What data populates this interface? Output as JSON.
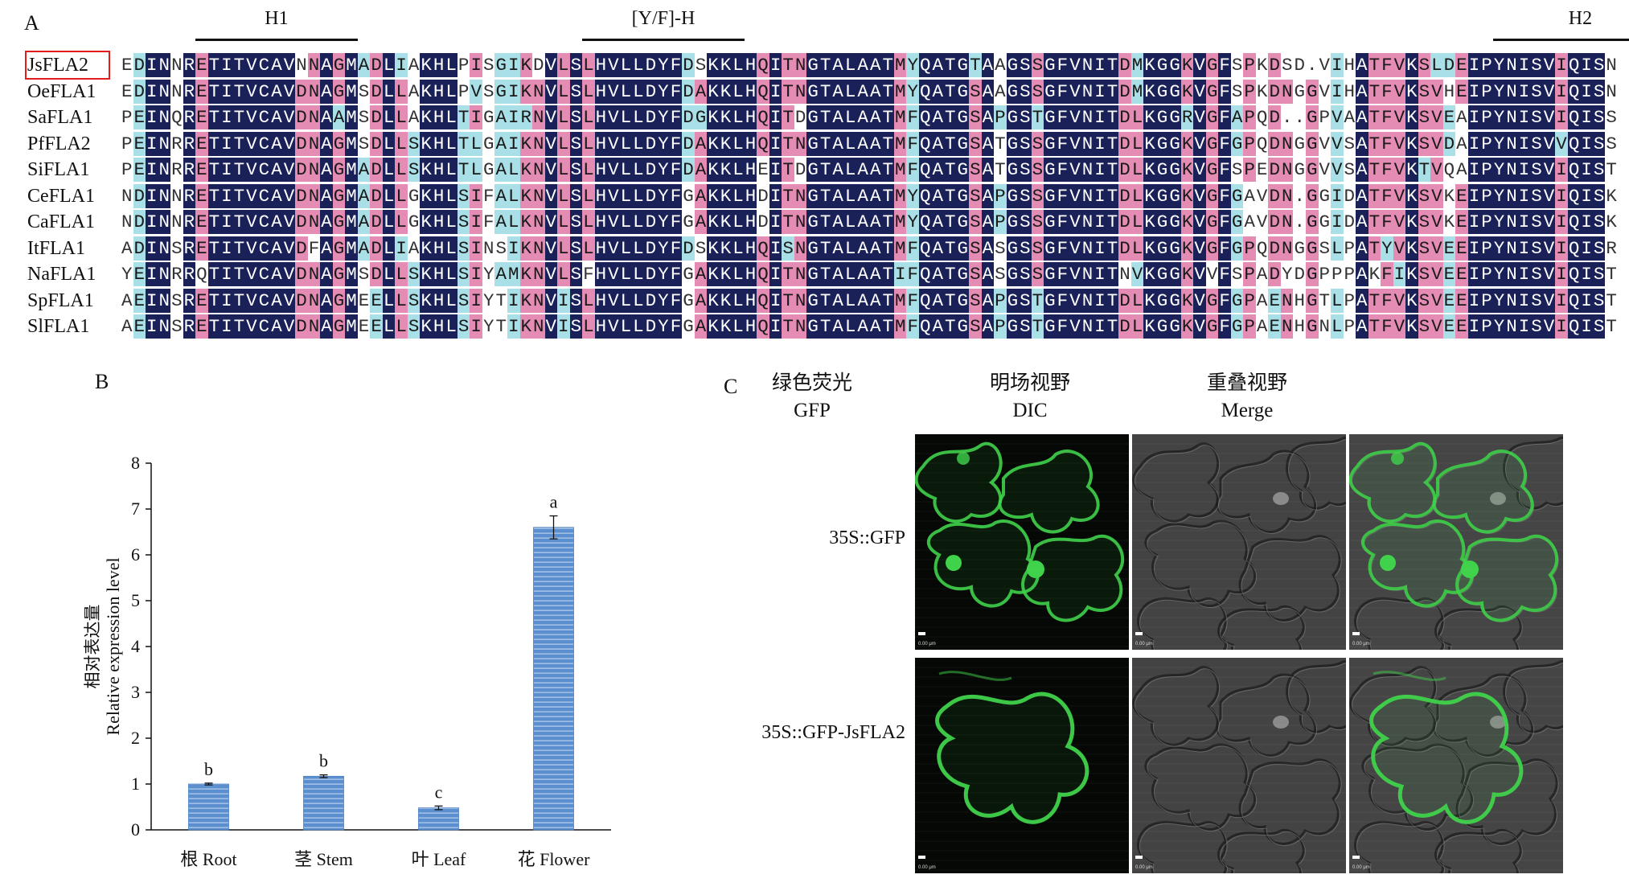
{
  "panel_labels": {
    "a": "A",
    "b": "B",
    "c": "C"
  },
  "alignment": {
    "regions": [
      {
        "label": "H1",
        "start": 6,
        "end": 18
      },
      {
        "label": "[Y/F]-H",
        "start": 37,
        "end": 49
      },
      {
        "label": "H2",
        "start": 110,
        "end": 123
      }
    ],
    "sequences": [
      {
        "name": "JsFLA2",
        "seq": "EDINNRETITVCAVNNAGMADLIAKHLPISGIKDVLSLHVLLDYFDSKKLHQITNGTALAATMYQATGTAAGSSGFVNITDMKGGKVGFSPKDSD.VIHATFVKSLDEIPYNISVIQISN"
      },
      {
        "name": "OeFLA1",
        "seq": "EDINNRETITVCAVDNAGMSDLLAKHLPVSGIKNVLSLHVLLDYFDAKKLHQITNGTALAATMYQATGSAAGSSGFVNITDMKGGKVGFSPKDNGGVIHATFVKSVHEIPYNISVIQISN"
      },
      {
        "name": "SaFLA1",
        "seq": "PEINQRETITVCAVDNAAMSDLLAKHLTIGAIRNVLSLHVLLDYFDGKKLHQITDGTALAATMFQATGSAPGSTGFVNITDLKGGRVGFAPQD..GPVAATFVKSVEAIPYNISVIQISS"
      },
      {
        "name": "PfFLA2",
        "seq": "PEINRRETITVCAVDNAGMSDLLSKHLTLGAIKNVLSLHVLLDYFDAKKLHQITNGTALAATMFQATGSATGSSGFVNITDLKGGKVGFGPQDNGGVVSATFVKSVDAIPYNISVVQISS"
      },
      {
        "name": "SiFLA1",
        "seq": "PEINRRETITVCAVDNAGMADLLSKHLTLGALKNVLSLHVLLDYFDAKKLHEITDGTALAATMFQATGSATGSSGFVNITDLKGGKVGFSPEDNGGVVSATFVKTVQAIPYNISVIQIST"
      },
      {
        "name": "CeFLA1",
        "seq": "NDINNRETITVCAVDNAGMADLLGKHLSIFALKNVLSLHVLLDYFGAKKLHDITNGTALAATMYQATGSAPGSSGFVNITDLKGGKVGFGAVDN.GGIDATFVKSVKEIPYNISVIQISK"
      },
      {
        "name": "CaFLA1",
        "seq": "NDINNRETITVCAVDNAGMADLLGKHLSIFALKNVLSLHVLLDYFGAKKLHDITNGTALAATMYQATGSAPGSSGFVNITDLKGGKVGFGAVDN.GGIDATFVKSVKEIPYNISVIQISK"
      },
      {
        "name": "ItFLA1",
        "seq": "ADINSRETITVCAVDFAGMADLIAKHLSINSIKNVLSLHVLLDYFDSKKLHQISNGTALAATMFQATGSASGSSGFVNITDLKGGKVGFGPQDNGGSLPATYVKSVEEIPYNISVIQISR"
      },
      {
        "name": "NaFLA1",
        "seq": "YEINRRQTITVCAVDNAGMSDLLSKHLSIYAMKNVLSFHVLLDYFGAKKLHQITNGTALAATIFQATGSASGSSGFVNITNVKGGKVVFSPADYDGPPPAKFIKSVEEIPYNISVIQIST"
      },
      {
        "name": "SpFLA1",
        "seq": "AEINSRETITVCAVDNAGMEELLSKHLSIYTIKNVISLHVLLDYFGAKKLHQITNGTALAATMFQATGSAPGSTGFVNITDLKGGKVGFGPAENHGTLPATFVKSVEEIPYNISVIQIST"
      },
      {
        "name": "SlFLA1",
        "seq": "AEINSRETITVCAVDNAGMEELLSKHLSIYTIKNVISLHVLLDYFGAKKLHQITNGTALAATMFQATGSAPGSTGFVNITDLKGGKVGFGPAENHGNLPATFVKSVEEIPYNISVIQIST"
      }
    ],
    "shading_colors": {
      "identical": "#1a2158",
      "similar": "#e58cb4",
      "weak": "#a9dfe6",
      "none": "#ffffff"
    }
  },
  "chart_data": {
    "type": "bar",
    "categories": [
      "根 Root",
      "茎 Stem",
      "叶 Leaf",
      "花 Flower"
    ],
    "values": [
      1.0,
      1.17,
      0.48,
      6.6
    ],
    "errors": [
      0.02,
      0.03,
      0.04,
      0.25
    ],
    "significance": [
      "b",
      "b",
      "c",
      "a"
    ],
    "ylabel_cn": "相对表达量",
    "ylabel_en": "Relative expression level",
    "ylim": [
      0,
      8
    ],
    "yticks": [
      0,
      1,
      2,
      3,
      4,
      5,
      6,
      7,
      8
    ],
    "bar_color": "#5b8fcf",
    "bar_stripe_color": "#c9dcf1"
  },
  "microscopy": {
    "columns": [
      {
        "cn": "绿色荧光",
        "en": "GFP"
      },
      {
        "cn": "明场视野",
        "en": "DIC"
      },
      {
        "cn": "重叠视野",
        "en": "Merge"
      }
    ],
    "rows": [
      {
        "label": "35S::GFP"
      },
      {
        "label": "35S::GFP-JsFLA2"
      }
    ],
    "scale_text": "0.00 μm",
    "gfp_color": "#3fd24a"
  }
}
